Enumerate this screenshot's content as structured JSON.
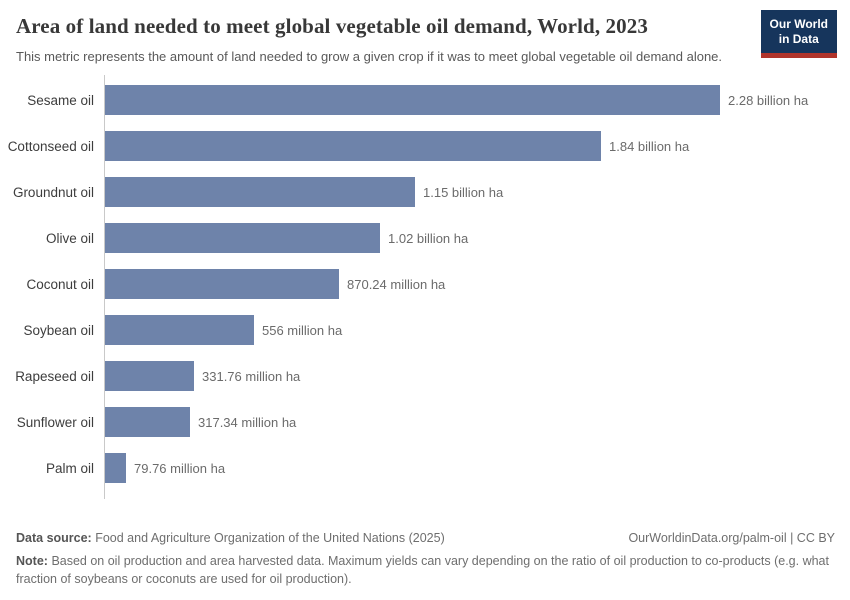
{
  "header": {
    "title": "Area of land needed to meet global vegetable oil demand, World, 2023",
    "subtitle": "This metric represents the amount of land needed to grow a given crop if it was to meet global vegetable oil demand alone.",
    "logo": {
      "line1": "Our World",
      "line2": "in Data"
    }
  },
  "chart_data": {
    "type": "bar",
    "orientation": "horizontal",
    "title": "Area of land needed to meet global vegetable oil demand, World, 2023",
    "xlabel": "",
    "ylabel": "",
    "unit": "hectares",
    "grid": false,
    "legend": "none",
    "xlim_ha": [
      0,
      2280000000
    ],
    "categories": [
      "Sesame oil",
      "Cottonseed oil",
      "Groundnut oil",
      "Olive oil",
      "Coconut oil",
      "Soybean oil",
      "Rapeseed oil",
      "Sunflower oil",
      "Palm oil"
    ],
    "values_ha": [
      2280000000,
      1840000000,
      1150000000,
      1020000000,
      870240000,
      556000000,
      331760000,
      317340000,
      79760000
    ],
    "value_labels": [
      "2.28 billion ha",
      "1.84 billion ha",
      "1.15 billion ha",
      "1.02 billion ha",
      "870.24 million ha",
      "556 million ha",
      "331.76 million ha",
      "317.34 million ha",
      "79.76 million ha"
    ]
  },
  "footer": {
    "datasource_label": "Data source:",
    "datasource_text": "Food and Agriculture Organization of the United Nations (2025)",
    "link": "OurWorldinData.org/palm-oil | CC BY",
    "note_label": "Note:",
    "note_text": "Based on oil production and area harvested data. Maximum yields can vary depending on the ratio of oil production to co-products (e.g. what fraction of soybeans or coconuts are used for oil production)."
  },
  "colors": {
    "bar": "#6e83aa",
    "logo_navy": "#16355c",
    "logo_red": "#b0342b",
    "title_text": "#383838",
    "subtitle_text": "#595959",
    "value_text": "#6b6b6b",
    "axis_line": "#c9c9c9"
  }
}
